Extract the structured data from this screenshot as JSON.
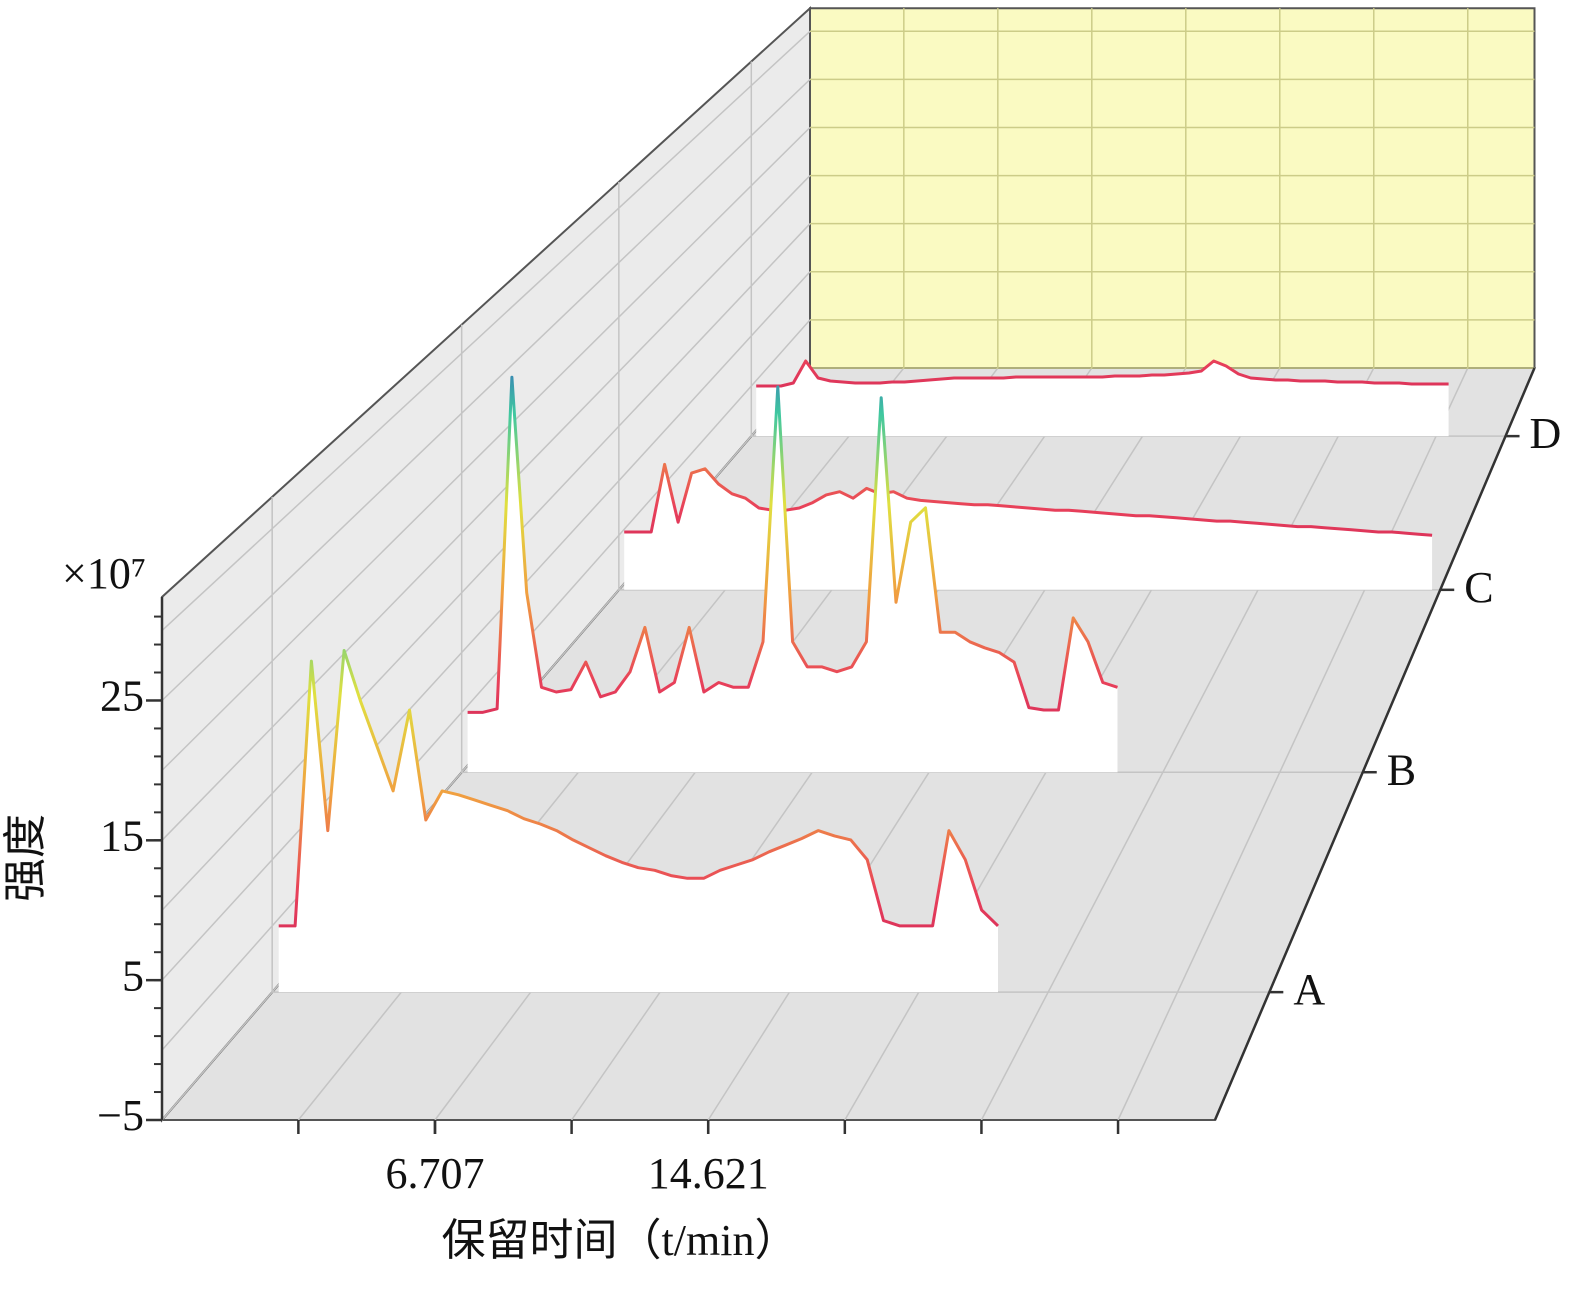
{
  "chart_data": {
    "type": "waterfall",
    "y_multiplier": "×10⁷",
    "ylabel": "强度",
    "xlabel": "保留时间（t/min）",
    "xlim": [
      -1.2,
      29.3
    ],
    "xticks": [
      6.707,
      14.621
    ],
    "ylim": [
      -5,
      32.4
    ],
    "yticks": [
      {
        "value": -5,
        "label": "−5"
      },
      5,
      15,
      25
    ],
    "grid": true,
    "colormap": [
      "#c81e5a",
      "#e8405a",
      "#f0a040",
      "#e0e040",
      "#40c8a0",
      "#3040c8"
    ],
    "floor_color": "#e2e2e2",
    "wall_color": "#ebebeb",
    "back_wall_color": "#fafac2",
    "x": [
      -1,
      -0.5,
      0,
      0.5,
      1,
      1.5,
      2,
      2.5,
      3,
      3.5,
      4,
      4.5,
      5,
      5.5,
      6,
      6.5,
      7,
      7.5,
      8,
      8.5,
      9,
      9.5,
      10,
      10.5,
      11,
      11.5,
      12,
      12.5,
      13,
      13.5,
      14,
      14.5,
      15,
      15.5,
      16,
      16.5,
      17,
      17.5,
      18,
      18.5,
      19,
      19.5,
      20,
      20.5,
      21,
      21.5,
      22,
      22.5,
      23,
      23.5,
      24,
      24.5,
      25,
      25.5,
      26,
      26.5,
      27,
      27.5,
      28,
      28.5,
      29
    ],
    "series": [
      {
        "name": "A",
        "values": [
          0,
          0,
          20,
          7.2,
          20.8,
          17.0,
          13.6,
          10.2,
          16.3,
          8.0,
          10.2,
          9.9,
          9.5,
          9.1,
          8.7,
          8.1,
          7.7,
          7.2,
          6.5,
          5.9,
          5.3,
          4.8,
          4.4,
          4.2,
          3.8,
          3.6,
          3.6,
          4.2,
          4.6,
          5.0,
          5.6,
          6.1,
          6.6,
          7.2,
          6.8,
          6.5,
          5.0,
          0.4,
          0,
          0,
          0,
          7.2,
          5.0,
          1.2,
          0,
          null,
          null,
          null,
          null,
          null,
          null,
          null,
          null,
          null,
          null,
          null,
          null,
          null,
          null,
          null,
          null
        ]
      },
      {
        "name": "B",
        "values": [
          0,
          0,
          0.3,
          28,
          10,
          2.1,
          1.7,
          1.9,
          4.2,
          1.3,
          1.7,
          3.4,
          7.1,
          1.7,
          2.5,
          7.1,
          1.7,
          2.5,
          2.1,
          2.1,
          5.9,
          27.2,
          5.9,
          3.8,
          3.8,
          3.4,
          3.8,
          5.9,
          26.3,
          9.2,
          15.9,
          17.1,
          6.7,
          6.7,
          5.9,
          5.4,
          5.0,
          4.2,
          0.4,
          0.2,
          0.2,
          7.9,
          5.9,
          2.5,
          2.1,
          null,
          null,
          null,
          null,
          null,
          null,
          null,
          null,
          null,
          null,
          null,
          null,
          null,
          null,
          null,
          null
        ]
      },
      {
        "name": "C",
        "values": [
          0.3,
          0.3,
          0.3,
          6.5,
          1.2,
          5.7,
          6.1,
          4.7,
          3.8,
          3.4,
          2.5,
          2.3,
          2.3,
          2.5,
          3.0,
          3.7,
          4.0,
          3.4,
          4.3,
          3.8,
          4.0,
          3.4,
          3.2,
          3.1,
          3.0,
          2.9,
          2.8,
          2.8,
          2.7,
          2.6,
          2.5,
          2.4,
          2.3,
          2.3,
          2.2,
          2.1,
          2.0,
          1.9,
          1.8,
          1.8,
          1.7,
          1.6,
          1.5,
          1.4,
          1.3,
          1.3,
          1.2,
          1.1,
          1.0,
          0.9,
          0.8,
          0.8,
          0.7,
          0.6,
          0.5,
          0.4,
          0.3,
          0.3,
          0.2,
          0.1,
          0.0
        ]
      },
      {
        "name": "D",
        "values": [
          0,
          0,
          0,
          0.3,
          2.5,
          0.8,
          0.5,
          0.4,
          0.3,
          0.3,
          0.3,
          0.4,
          0.4,
          0.5,
          0.6,
          0.7,
          0.8,
          0.8,
          0.8,
          0.8,
          0.8,
          0.9,
          0.9,
          0.9,
          0.9,
          0.9,
          0.9,
          0.9,
          0.9,
          1.0,
          1.0,
          1.0,
          1.1,
          1.1,
          1.2,
          1.3,
          1.5,
          2.5,
          2.0,
          1.2,
          0.8,
          0.7,
          0.6,
          0.6,
          0.5,
          0.5,
          0.5,
          0.4,
          0.4,
          0.4,
          0.3,
          0.3,
          0.3,
          0.2,
          0.2,
          0.2,
          0.2,
          null,
          null,
          null,
          null
        ]
      }
    ]
  }
}
